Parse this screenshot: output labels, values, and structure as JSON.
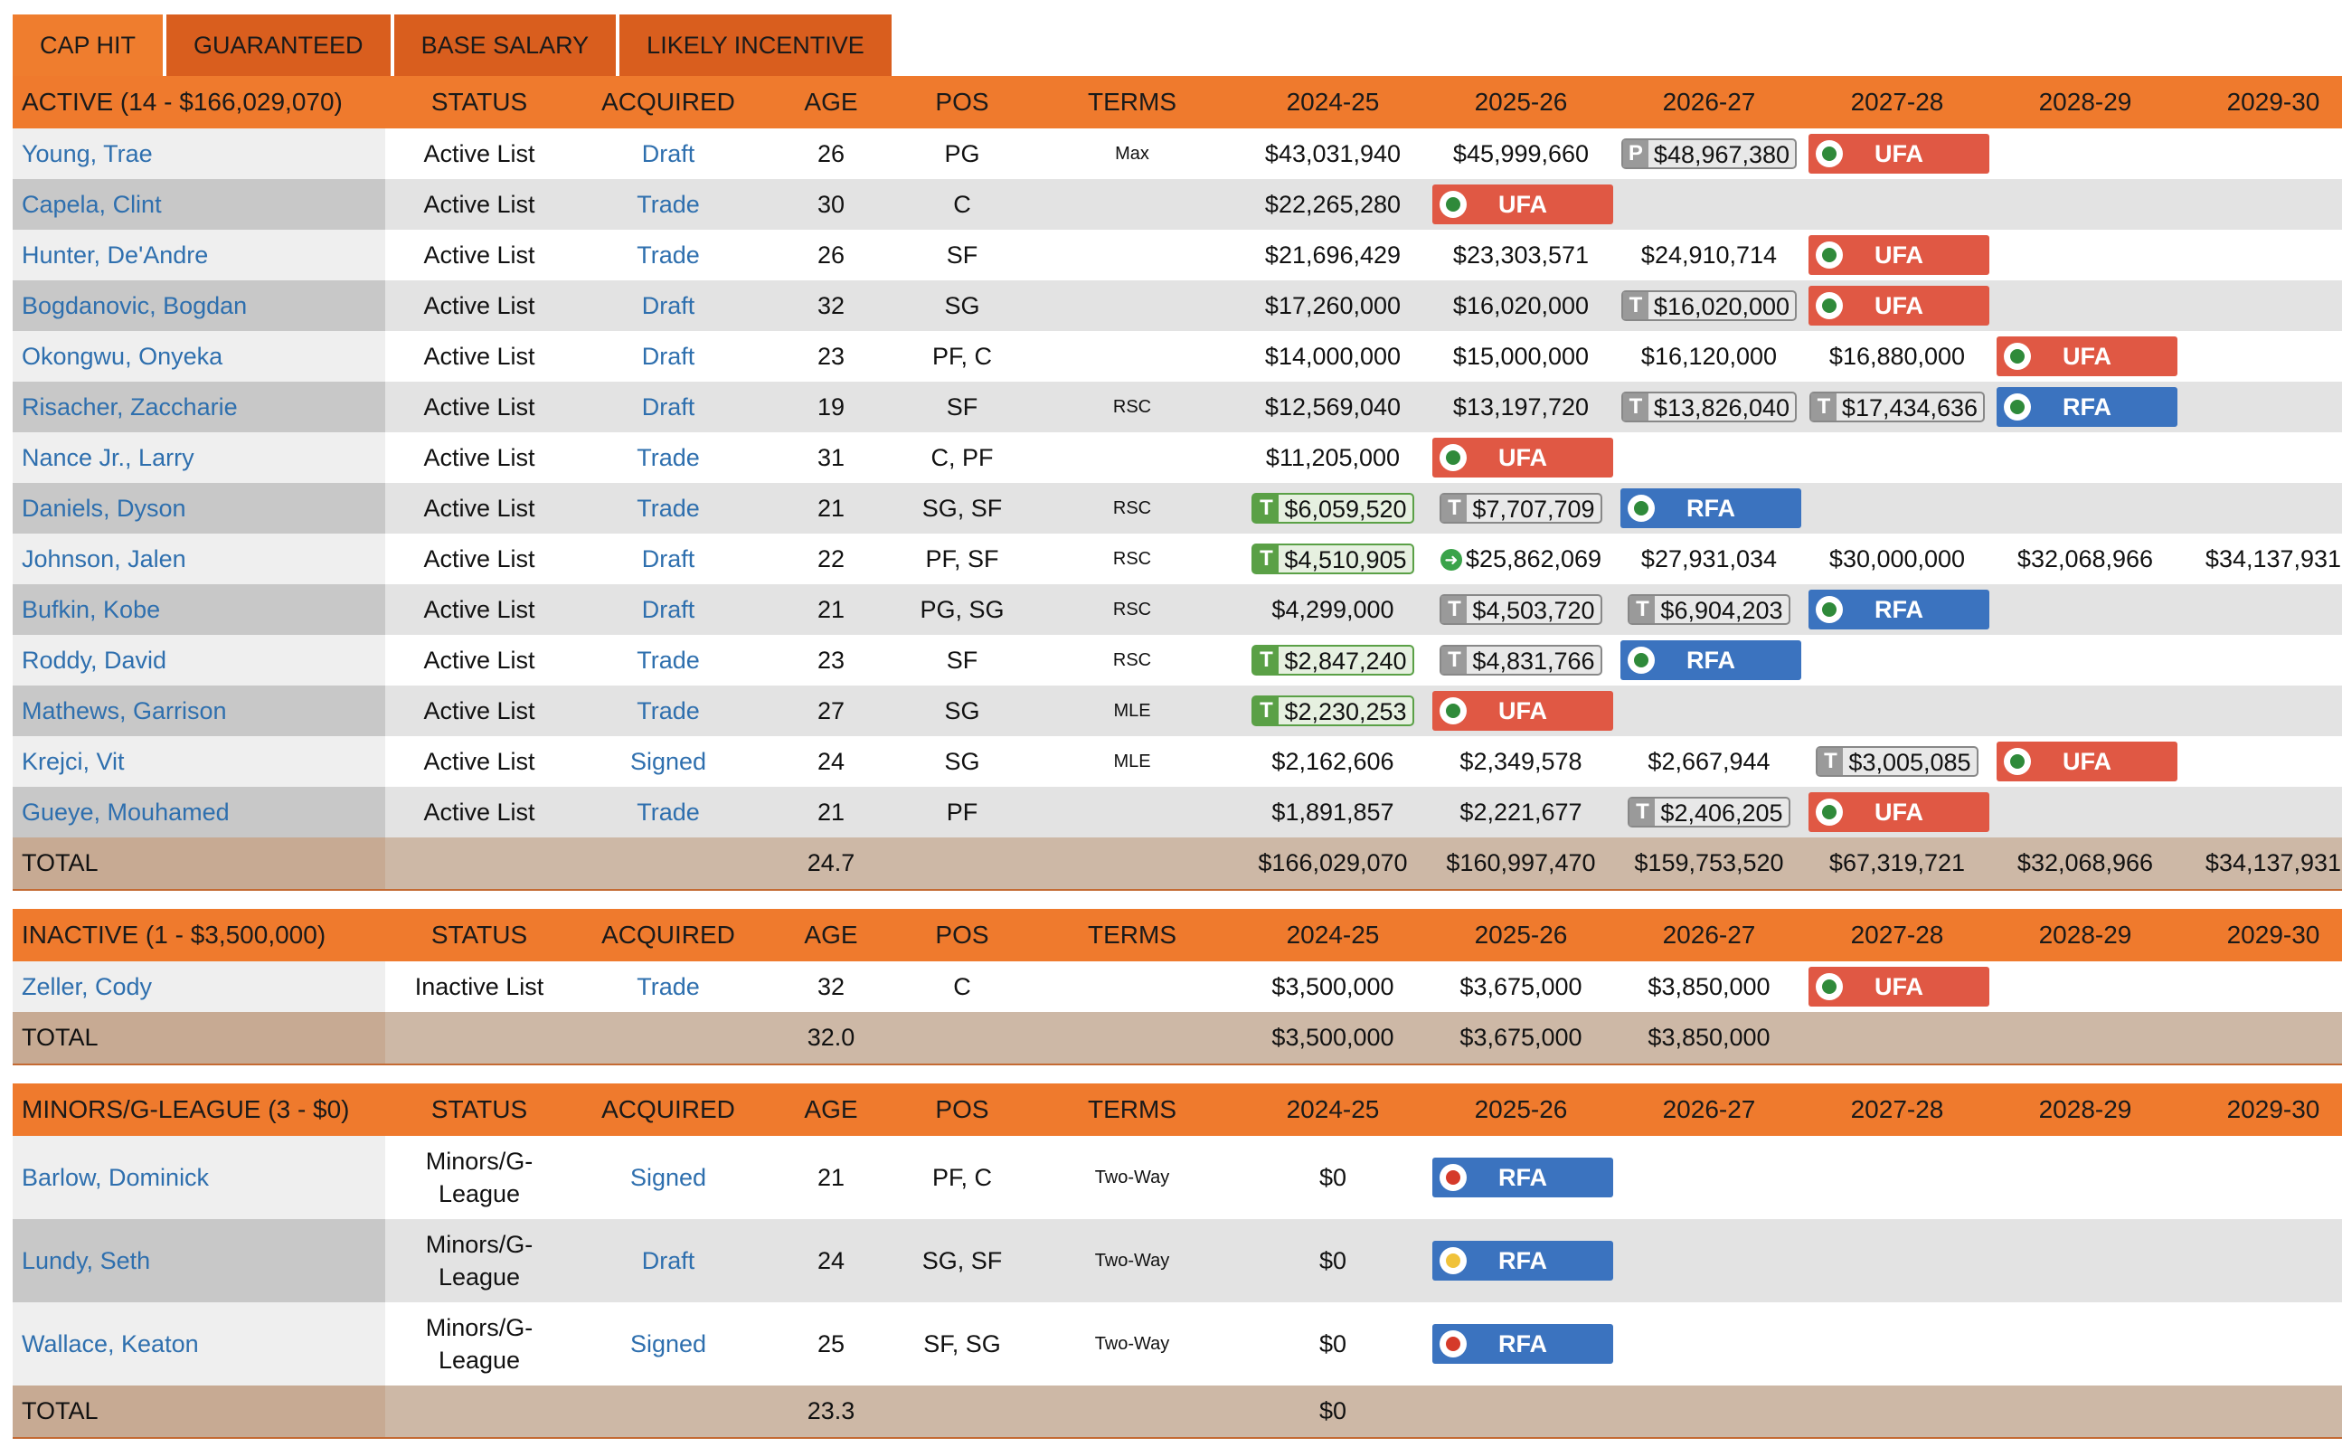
{
  "tabs": [
    "CAP HIT",
    "GUARANTEED",
    "BASE SALARY",
    "LIKELY INCENTIVE"
  ],
  "columns": [
    "STATUS",
    "ACQUIRED",
    "AGE",
    "POS",
    "TERMS",
    "2024-25",
    "2025-26",
    "2026-27",
    "2027-28",
    "2028-29",
    "2029-30"
  ],
  "sections": [
    {
      "title": "ACTIVE (14 - $166,029,070)",
      "rows": [
        {
          "name": "Young, Trae",
          "status": "Active List",
          "acquired": "Draft",
          "age": "26",
          "pos": "PG",
          "terms": "Max",
          "cells": [
            {
              "v": "$43,031,940"
            },
            {
              "v": "$45,999,660"
            },
            {
              "v": "$48,967,380",
              "t": "P"
            },
            {
              "fa": "UFA",
              "logo": "green"
            },
            {},
            {}
          ]
        },
        {
          "name": "Capela, Clint",
          "status": "Active List",
          "acquired": "Trade",
          "age": "30",
          "pos": "C",
          "terms": "",
          "cells": [
            {
              "v": "$22,265,280"
            },
            {
              "fa": "UFA",
              "logo": "green"
            },
            {},
            {},
            {},
            {}
          ]
        },
        {
          "name": "Hunter, De'Andre",
          "status": "Active List",
          "acquired": "Trade",
          "age": "26",
          "pos": "SF",
          "terms": "",
          "cells": [
            {
              "v": "$21,696,429"
            },
            {
              "v": "$23,303,571"
            },
            {
              "v": "$24,910,714"
            },
            {
              "fa": "UFA",
              "logo": "green"
            },
            {},
            {}
          ]
        },
        {
          "name": "Bogdanovic, Bogdan",
          "status": "Active List",
          "acquired": "Draft",
          "age": "32",
          "pos": "SG",
          "terms": "",
          "cells": [
            {
              "v": "$17,260,000"
            },
            {
              "v": "$16,020,000"
            },
            {
              "v": "$16,020,000",
              "t": "T"
            },
            {
              "fa": "UFA",
              "logo": "green"
            },
            {},
            {}
          ]
        },
        {
          "name": "Okongwu, Onyeka",
          "status": "Active List",
          "acquired": "Draft",
          "age": "23",
          "pos": "PF, C",
          "terms": "",
          "cells": [
            {
              "v": "$14,000,000"
            },
            {
              "v": "$15,000,000"
            },
            {
              "v": "$16,120,000"
            },
            {
              "v": "$16,880,000"
            },
            {
              "fa": "UFA",
              "logo": "green"
            },
            {}
          ]
        },
        {
          "name": "Risacher, Zaccharie",
          "status": "Active List",
          "acquired": "Draft",
          "age": "19",
          "pos": "SF",
          "terms": "RSC",
          "cells": [
            {
              "v": "$12,569,040"
            },
            {
              "v": "$13,197,720"
            },
            {
              "v": "$13,826,040",
              "t": "T"
            },
            {
              "v": "$17,434,636",
              "t": "T"
            },
            {
              "fa": "RFA",
              "logo": "green"
            },
            {}
          ]
        },
        {
          "name": "Nance Jr., Larry",
          "status": "Active List",
          "acquired": "Trade",
          "age": "31",
          "pos": "C, PF",
          "terms": "",
          "cells": [
            {
              "v": "$11,205,000"
            },
            {
              "fa": "UFA",
              "logo": "green"
            },
            {},
            {},
            {},
            {}
          ]
        },
        {
          "name": "Daniels, Dyson",
          "status": "Active List",
          "acquired": "Trade",
          "age": "21",
          "pos": "SG, SF",
          "terms": "RSC",
          "cells": [
            {
              "v": "$6,059,520",
              "t": "T",
              "g": true
            },
            {
              "v": "$7,707,709",
              "t": "T"
            },
            {
              "fa": "RFA",
              "logo": "green"
            },
            {},
            {},
            {}
          ]
        },
        {
          "name": "Johnson, Jalen",
          "status": "Active List",
          "acquired": "Draft",
          "age": "22",
          "pos": "PF, SF",
          "terms": "RSC",
          "cells": [
            {
              "v": "$4,510,905",
              "t": "T",
              "g": true
            },
            {
              "v": "$25,862,069",
              "arrow": true
            },
            {
              "v": "$27,931,034"
            },
            {
              "v": "$30,000,000"
            },
            {
              "v": "$32,068,966"
            },
            {
              "v": "$34,137,931"
            }
          ]
        },
        {
          "name": "Bufkin, Kobe",
          "status": "Active List",
          "acquired": "Draft",
          "age": "21",
          "pos": "PG, SG",
          "terms": "RSC",
          "cells": [
            {
              "v": "$4,299,000"
            },
            {
              "v": "$4,503,720",
              "t": "T"
            },
            {
              "v": "$6,904,203",
              "t": "T"
            },
            {
              "fa": "RFA",
              "logo": "green"
            },
            {},
            {}
          ]
        },
        {
          "name": "Roddy, David",
          "status": "Active List",
          "acquired": "Trade",
          "age": "23",
          "pos": "SF",
          "terms": "RSC",
          "cells": [
            {
              "v": "$2,847,240",
              "t": "T",
              "g": true
            },
            {
              "v": "$4,831,766",
              "t": "T"
            },
            {
              "fa": "RFA",
              "logo": "green"
            },
            {},
            {},
            {}
          ]
        },
        {
          "name": "Mathews, Garrison",
          "status": "Active List",
          "acquired": "Trade",
          "age": "27",
          "pos": "SG",
          "terms": "MLE",
          "cells": [
            {
              "v": "$2,230,253",
              "t": "T",
              "g": true
            },
            {
              "fa": "UFA",
              "logo": "green"
            },
            {},
            {},
            {},
            {}
          ]
        },
        {
          "name": "Krejci, Vit",
          "status": "Active List",
          "acquired": "Signed",
          "age": "24",
          "pos": "SG",
          "terms": "MLE",
          "cells": [
            {
              "v": "$2,162,606"
            },
            {
              "v": "$2,349,578"
            },
            {
              "v": "$2,667,944"
            },
            {
              "v": "$3,005,085",
              "t": "T"
            },
            {
              "fa": "UFA",
              "logo": "green"
            },
            {}
          ]
        },
        {
          "name": "Gueye, Mouhamed",
          "status": "Active List",
          "acquired": "Trade",
          "age": "21",
          "pos": "PF",
          "terms": "",
          "cells": [
            {
              "v": "$1,891,857"
            },
            {
              "v": "$2,221,677"
            },
            {
              "v": "$2,406,205",
              "t": "T"
            },
            {
              "fa": "UFA",
              "logo": "green"
            },
            {},
            {}
          ]
        }
      ],
      "total": {
        "label": "TOTAL",
        "age": "24.7",
        "vals": [
          "$166,029,070",
          "$160,997,470",
          "$159,753,520",
          "$67,319,721",
          "$32,068,966",
          "$34,137,931"
        ]
      }
    },
    {
      "title": "INACTIVE (1 - $3,500,000)",
      "rows": [
        {
          "name": "Zeller, Cody",
          "status": "Inactive List",
          "acquired": "Trade",
          "age": "32",
          "pos": "C",
          "terms": "",
          "cells": [
            {
              "v": "$3,500,000"
            },
            {
              "v": "$3,675,000"
            },
            {
              "v": "$3,850,000"
            },
            {
              "fa": "UFA",
              "logo": "green"
            },
            {},
            {}
          ]
        }
      ],
      "total": {
        "label": "TOTAL",
        "age": "32.0",
        "vals": [
          "$3,500,000",
          "$3,675,000",
          "$3,850,000",
          "",
          "",
          ""
        ]
      }
    },
    {
      "title": "MINORS/G-LEAGUE (3 - $0)",
      "tall": true,
      "rows": [
        {
          "name": "Barlow, Dominick",
          "status": "Minors/G-League",
          "acquired": "Signed",
          "age": "21",
          "pos": "PF, C",
          "terms": "Two-Way",
          "cells": [
            {
              "v": "$0"
            },
            {
              "fa": "RFA",
              "logo": "red"
            },
            {},
            {},
            {},
            {}
          ]
        },
        {
          "name": "Lundy, Seth",
          "status": "Minors/G-League",
          "acquired": "Draft",
          "age": "24",
          "pos": "SG, SF",
          "terms": "Two-Way",
          "cells": [
            {
              "v": "$0"
            },
            {
              "fa": "RFA",
              "logo": "gold"
            },
            {},
            {},
            {},
            {}
          ]
        },
        {
          "name": "Wallace, Keaton",
          "status": "Minors/G-League",
          "acquired": "Signed",
          "age": "25",
          "pos": "SF, SG",
          "terms": "Two-Way",
          "cells": [
            {
              "v": "$0"
            },
            {
              "fa": "RFA",
              "logo": "red"
            },
            {},
            {},
            {},
            {}
          ]
        }
      ],
      "total": {
        "label": "TOTAL",
        "age": "23.3",
        "vals": [
          "$0",
          "",
          "",
          "",
          "",
          ""
        ]
      }
    }
  ]
}
